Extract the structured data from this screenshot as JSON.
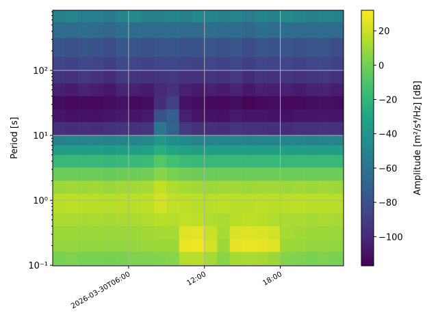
{
  "chart_data": {
    "type": "heatmap",
    "title": "",
    "xlabel": "",
    "ylabel": "Period [s]",
    "colorbar_label": "Amplitude [m²/s⁴/Hz] [dB]",
    "colormap": "viridis",
    "clim": [
      -117,
      32
    ],
    "colorbar_ticks": [
      20,
      0,
      -20,
      -40,
      -60,
      -80,
      -100
    ],
    "colorbar_tick_labels": [
      "20",
      "0",
      "−20",
      "−40",
      "−60",
      "−80",
      "−100"
    ],
    "y_scale": "log",
    "ylim": [
      0.098,
      844
    ],
    "y_ticks": [
      0.1,
      1,
      10,
      100
    ],
    "y_tick_labels": [
      "10⁻¹",
      "10⁰",
      "10¹",
      "10²"
    ],
    "date": "2026-03-30",
    "xlim": [
      "00:00",
      "23:00"
    ],
    "x_ticks": [
      "06:00",
      "12:00",
      "18:00"
    ],
    "x_tick_labels": [
      "2026-03-30T06:00",
      "12:00",
      "18:00"
    ],
    "grid": true,
    "time_bins_start": [
      "00:00",
      "01:00",
      "02:00",
      "03:00",
      "04:00",
      "05:00",
      "06:00",
      "07:00",
      "08:00",
      "09:00",
      "10:00",
      "11:00",
      "12:00",
      "13:00",
      "14:00",
      "15:00",
      "16:00",
      "17:00",
      "18:00",
      "19:00",
      "20:00",
      "21:00",
      "22:00"
    ],
    "period_bin_edges": [
      844,
      550,
      316,
      160,
      100,
      63,
      40,
      25,
      16,
      10,
      7,
      5,
      3.2,
      2,
      1.26,
      0.63,
      0.4,
      0.25,
      0.16,
      0.098
    ],
    "values_db": [
      [
        -52,
        -50,
        -54,
        -52,
        -55,
        -50,
        -48,
        -52,
        -52,
        -50,
        -52,
        -48,
        -50,
        -52,
        -50,
        -54,
        -50,
        -52,
        -48,
        -50,
        -52,
        -50,
        -52
      ],
      [
        -64,
        -66,
        -63,
        -65,
        -68,
        -62,
        -64,
        -66,
        -65,
        -64,
        -66,
        -65,
        -63,
        -66,
        -64,
        -68,
        -62,
        -65,
        -64,
        -66,
        -65,
        -64,
        -66
      ],
      [
        -78,
        -80,
        -77,
        -79,
        -82,
        -76,
        -78,
        -80,
        -78,
        -77,
        -79,
        -80,
        -78,
        -80,
        -77,
        -82,
        -78,
        -79,
        -78,
        -80,
        -78,
        -77,
        -82
      ],
      [
        -86,
        -88,
        -85,
        -87,
        -90,
        -84,
        -86,
        -88,
        -86,
        -85,
        -87,
        -88,
        -86,
        -88,
        -85,
        -90,
        -86,
        -87,
        -86,
        -88,
        -86,
        -85,
        -88
      ],
      [
        -94,
        -96,
        -93,
        -95,
        -98,
        -92,
        -94,
        -96,
        -94,
        -93,
        -95,
        -96,
        -94,
        -96,
        -93,
        -98,
        -94,
        -95,
        -94,
        -96,
        -94,
        -93,
        -96
      ],
      [
        -104,
        -106,
        -103,
        -105,
        -107,
        -102,
        -104,
        -106,
        -100,
        -96,
        -104,
        -106,
        -104,
        -106,
        -103,
        -107,
        -104,
        -105,
        -104,
        -106,
        -104,
        -103,
        -105
      ],
      [
        -112,
        -114,
        -113,
        -114,
        -112,
        -110,
        -113,
        -112,
        -98,
        -88,
        -110,
        -112,
        -113,
        -114,
        -112,
        -115,
        -113,
        -112,
        -114,
        -113,
        -112,
        -111,
        -112
      ],
      [
        -108,
        -110,
        -109,
        -110,
        -108,
        -106,
        -108,
        -106,
        -80,
        -72,
        -104,
        -108,
        -109,
        -110,
        -106,
        -108,
        -108,
        -109,
        -110,
        -108,
        -108,
        -107,
        -108
      ],
      [
        -96,
        -98,
        -97,
        -98,
        -96,
        -94,
        -96,
        -94,
        -58,
        -70,
        -92,
        -96,
        -97,
        -98,
        -94,
        -96,
        -96,
        -97,
        -98,
        -96,
        -96,
        -95,
        -96
      ],
      [
        -52,
        -50,
        -51,
        -50,
        -52,
        -50,
        -50,
        -48,
        -38,
        -44,
        -48,
        -50,
        -51,
        -50,
        -50,
        -52,
        -50,
        -50,
        -51,
        -50,
        -52,
        -50,
        -51
      ],
      [
        -35,
        -34,
        -35,
        -34,
        -36,
        -34,
        -34,
        -33,
        -25,
        -30,
        -33,
        -34,
        -35,
        -34,
        -34,
        -35,
        -34,
        -34,
        -35,
        -34,
        -35,
        -34,
        -35
      ],
      [
        -18,
        -17,
        -18,
        -17,
        -19,
        -17,
        -17,
        -16,
        -8,
        -13,
        -16,
        -17,
        -18,
        -17,
        -17,
        -18,
        -17,
        -17,
        -18,
        -17,
        -18,
        -17,
        -18
      ],
      [
        -2,
        -1,
        -2,
        -1,
        -3,
        -1,
        -1,
        0,
        5,
        2,
        0,
        -1,
        -2,
        -1,
        -1,
        -2,
        -1,
        -1,
        -2,
        -1,
        -2,
        -1,
        -2
      ],
      [
        10,
        11,
        10,
        11,
        9,
        11,
        11,
        12,
        18,
        14,
        12,
        11,
        10,
        11,
        11,
        10,
        11,
        11,
        10,
        11,
        10,
        11,
        10
      ],
      [
        16,
        17,
        16,
        16,
        15,
        16,
        16,
        17,
        22,
        18,
        17,
        16,
        16,
        17,
        16,
        16,
        17,
        16,
        16,
        17,
        16,
        16,
        16
      ],
      [
        13,
        13,
        12,
        13,
        12,
        13,
        13,
        14,
        16,
        15,
        18,
        17,
        14,
        13,
        16,
        17,
        16,
        14,
        13,
        13,
        12,
        13,
        12
      ],
      [
        10,
        10,
        9,
        10,
        9,
        10,
        10,
        11,
        12,
        12,
        25,
        26,
        20,
        12,
        24,
        25,
        24,
        22,
        12,
        11,
        10,
        10,
        9
      ],
      [
        8,
        8,
        7,
        8,
        7,
        8,
        8,
        9,
        10,
        10,
        28,
        29,
        22,
        10,
        27,
        28,
        27,
        25,
        10,
        9,
        8,
        8,
        7
      ],
      [
        2,
        3,
        2,
        2,
        1,
        2,
        3,
        3,
        4,
        5,
        15,
        16,
        12,
        5,
        12,
        13,
        12,
        10,
        4,
        3,
        2,
        3,
        2
      ]
    ]
  }
}
